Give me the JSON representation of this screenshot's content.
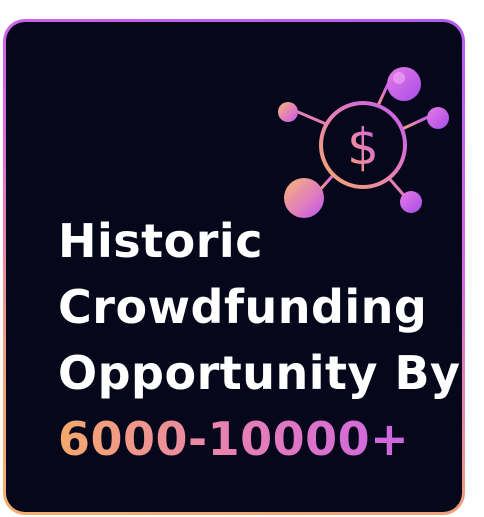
{
  "card": {
    "headline_lines": [
      "Historic",
      "Crowdfunding",
      "Opportunity By"
    ],
    "highlight": "6000-10000+"
  },
  "icon": {
    "name": "crowdfunding-network-icon",
    "center_glyph": "$"
  },
  "colors": {
    "background": "#06071a",
    "gradient_start": "#f5a96a",
    "gradient_mid": "#e77fb6",
    "gradient_end": "#c35cf0",
    "text": "#ffffff"
  }
}
